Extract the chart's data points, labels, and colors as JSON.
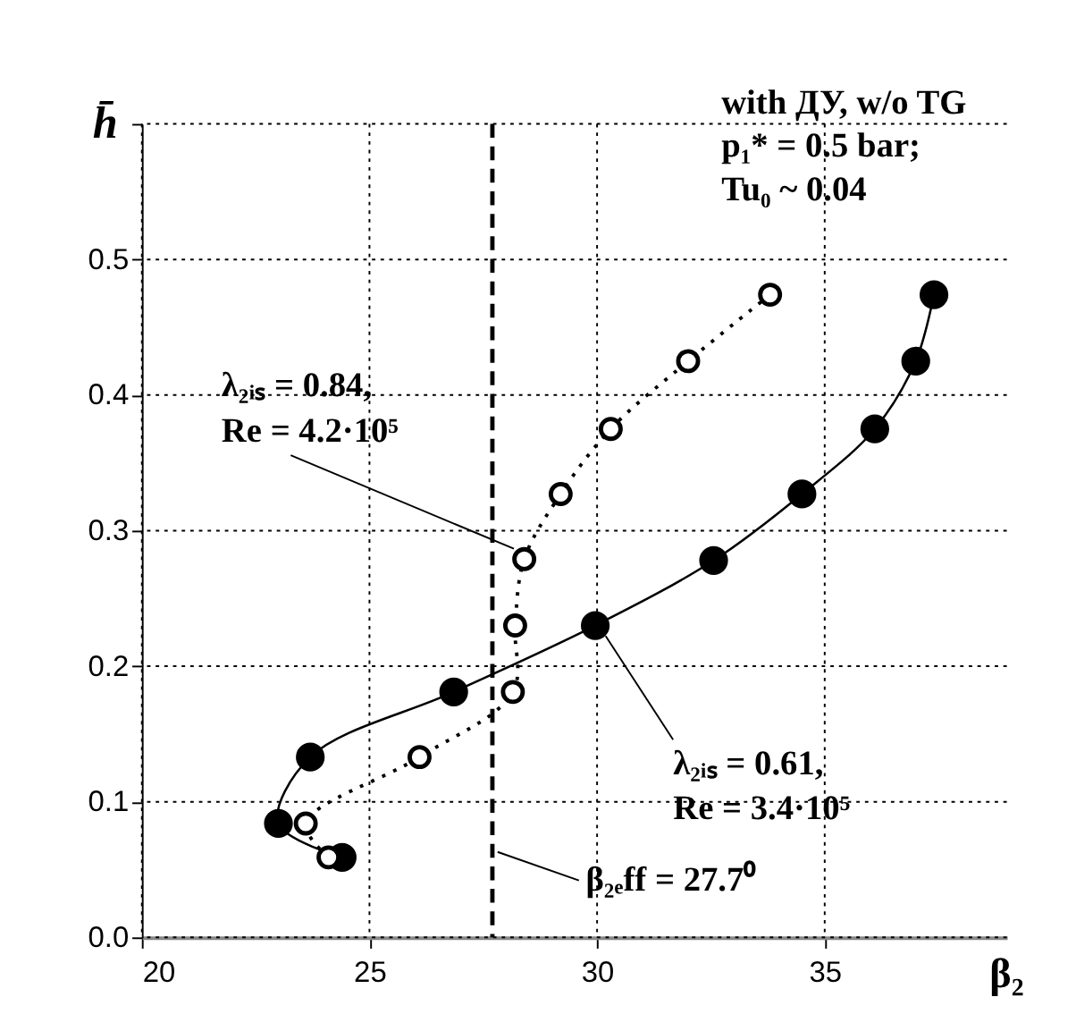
{
  "chart_data": {
    "type": "line",
    "xlabel": "β₂",
    "ylabel": "h̄",
    "xlim": [
      20,
      39
    ],
    "xticks": [
      20,
      25,
      30,
      35
    ],
    "ylim": [
      0,
      0.6
    ],
    "yticks": [
      {
        "value": 0,
        "label": "0.0"
      },
      0.1,
      0.2,
      0.3,
      0.4,
      0.5,
      {
        "value": 0.6,
        "label": null
      }
    ],
    "grid": true,
    "series": [
      {
        "color": "#000000",
        "marker": "circle",
        "line_style": "solid",
        "x": [
          24.4,
          23.0,
          23.7,
          26.85,
          29.96,
          32.56,
          34.5,
          36.1,
          37.0,
          37.4
        ],
        "values": [
          0.059,
          0.084,
          0.133,
          0.181,
          0.23,
          0.278,
          0.327,
          0.375,
          0.425,
          0.474
        ]
      },
      {
        "color": "#000000",
        "marker": "circle",
        "line_style": "dotted",
        "x": [
          24.1,
          23.6,
          26.1,
          28.15,
          28.2,
          28.4,
          29.2,
          30.3,
          32.0,
          33.8
        ],
        "values": [
          0.059,
          0.084,
          0.133,
          0.181,
          0.23,
          0.279,
          0.327,
          0.375,
          0.425,
          0.474
        ]
      }
    ],
    "ref_lines": [
      {
        "axis": "x",
        "value": 27.7,
        "label": "β₂ₑff = 27.7⁰",
        "line_style": "dashed",
        "color": "#000000"
      }
    ],
    "annotations": [
      "with ДУ, w/o TG",
      "p₁* = 0.5 bar;",
      "Tu₀ ~ 0.04",
      {
        "text": "λ₂ᵢₛ = 0.84, Re = 4.2·10⁵",
        "x": 28.4,
        "y": 0.279
      },
      {
        "text": "λ₂ᵢₛ = 0.61, Re = 3.4·10⁵",
        "x": 29.96,
        "y": 0.23
      }
    ]
  }
}
